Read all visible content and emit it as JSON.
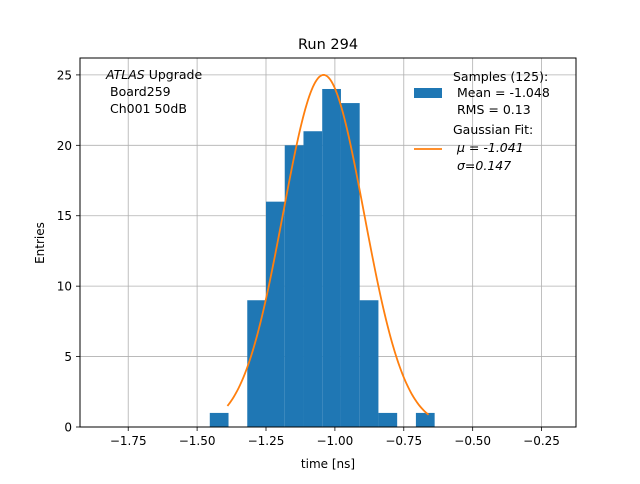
{
  "chart_data": {
    "type": "bar",
    "title": "Run 294",
    "xlabel": "time [ns]",
    "ylabel": "Entries",
    "xlim": [
      -1.925,
      -0.125
    ],
    "ylim": [
      0,
      26.2
    ],
    "grid": true,
    "x_ticks": [
      -1.75,
      -1.5,
      -1.25,
      -1.0,
      -0.75,
      -0.5,
      -0.25
    ],
    "x_tick_labels": [
      "−1.75",
      "−1.50",
      "−1.25",
      "−1.00",
      "−0.75",
      "−0.50",
      "−0.25"
    ],
    "y_ticks": [
      0,
      5,
      10,
      15,
      20,
      25
    ],
    "y_tick_labels": [
      "0",
      "5",
      "10",
      "15",
      "20",
      "25"
    ],
    "annotation": {
      "line1_italic": "ATLAS",
      "line1_rest": " Upgrade",
      "line2": "Board259",
      "line3": "Ch001 50dB"
    },
    "histogram": {
      "label": "Samples (125):",
      "stats": [
        "Mean = -1.048",
        "RMS = 0.13"
      ],
      "color": "#1f77b4",
      "bins": [
        {
          "x0": -1.454,
          "x1": -1.386,
          "count": 1
        },
        {
          "x0": -1.318,
          "x1": -1.25,
          "count": 9
        },
        {
          "x0": -1.25,
          "x1": -1.182,
          "count": 16
        },
        {
          "x0": -1.182,
          "x1": -1.114,
          "count": 20
        },
        {
          "x0": -1.114,
          "x1": -1.046,
          "count": 21
        },
        {
          "x0": -1.046,
          "x1": -0.978,
          "count": 24
        },
        {
          "x0": -0.978,
          "x1": -0.91,
          "count": 23
        },
        {
          "x0": -0.91,
          "x1": -0.842,
          "count": 9
        },
        {
          "x0": -0.842,
          "x1": -0.774,
          "count": 1
        },
        {
          "x0": -0.706,
          "x1": -0.638,
          "count": 1
        }
      ]
    },
    "fit": {
      "label": "Gaussian Fit:",
      "mu_text": "μ = -1.041",
      "sigma_text": "σ=0.147",
      "color": "#ff7f0e",
      "mu": -1.041,
      "sigma": 0.147,
      "amplitude": 25.0,
      "range": [
        -1.39,
        -0.66
      ]
    },
    "legend_position": "upper right"
  }
}
